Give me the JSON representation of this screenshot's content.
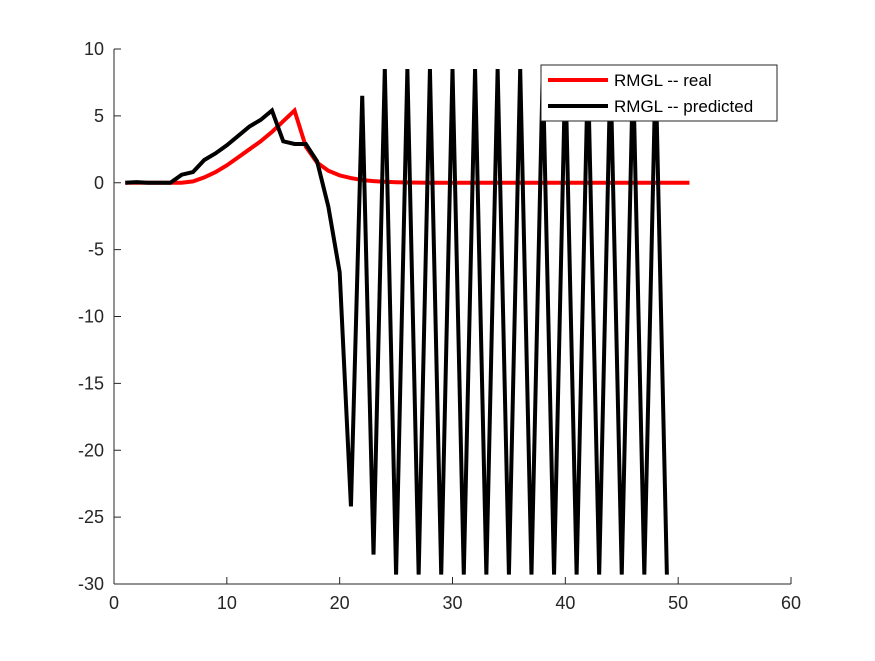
{
  "chart_data": {
    "type": "line",
    "title": "",
    "xlabel": "",
    "ylabel": "",
    "xlim": [
      0,
      60
    ],
    "ylim": [
      -30,
      10
    ],
    "xticks": [
      0,
      10,
      20,
      30,
      40,
      50,
      60
    ],
    "yticks": [
      -30,
      -25,
      -20,
      -15,
      -10,
      -5,
      0,
      5,
      10
    ],
    "xtick_labels": [
      "0",
      "10",
      "20",
      "30",
      "40",
      "50",
      "60"
    ],
    "ytick_labels": [
      "-30",
      "-25",
      "-20",
      "-15",
      "-10",
      "-5",
      "0",
      "5",
      "10"
    ],
    "grid": false,
    "legend": {
      "placement": "top-right",
      "entries": [
        "RMGL -- real",
        "RMGL -- predicted"
      ]
    },
    "series": [
      {
        "name": "RMGL -- real",
        "color": "#ff0000",
        "x": [
          1,
          2,
          3,
          4,
          5,
          6,
          7,
          8,
          9,
          10,
          11,
          12,
          13,
          14,
          15,
          16,
          17,
          18,
          19,
          20,
          21,
          22,
          23,
          24,
          25,
          26,
          27,
          28,
          29,
          30,
          31,
          32,
          33,
          34,
          35,
          36,
          37,
          38,
          39,
          40,
          41,
          42,
          43,
          44,
          45,
          46,
          47,
          48,
          49,
          50,
          51
        ],
        "y": [
          0,
          0,
          0,
          0,
          0,
          0,
          0.1,
          0.4,
          0.8,
          1.3,
          1.9,
          2.5,
          3.1,
          3.8,
          4.6,
          5.4,
          2.7,
          1.5,
          0.9,
          0.55,
          0.35,
          0.2,
          0.12,
          0.07,
          0.04,
          0.02,
          0.01,
          0,
          0,
          0,
          0,
          0,
          0,
          0,
          0,
          0,
          0,
          0,
          0,
          0,
          0,
          0,
          0,
          0,
          0,
          0,
          0,
          0,
          0,
          0,
          0
        ]
      },
      {
        "name": "RMGL -- predicted",
        "color": "#000000",
        "x": [
          1,
          2,
          3,
          4,
          5,
          6,
          7,
          8,
          9,
          10,
          11,
          12,
          13,
          14,
          15,
          16,
          17,
          18,
          19,
          20,
          21,
          22,
          23,
          24,
          25,
          26,
          27,
          28,
          29,
          30,
          31,
          32,
          33,
          34,
          35,
          36,
          37,
          38,
          39,
          40,
          41,
          42,
          43,
          44,
          45,
          46,
          47,
          48,
          49
        ],
        "y": [
          0,
          0.05,
          0,
          0,
          0,
          0.6,
          0.8,
          1.7,
          2.2,
          2.8,
          3.5,
          4.2,
          4.7,
          5.4,
          3.1,
          2.9,
          2.9,
          1.6,
          -1.8,
          -6.7,
          -24.2,
          6.5,
          -27.8,
          8.5,
          -29.3,
          8.5,
          -29.3,
          8.5,
          -29.3,
          8.5,
          -29.3,
          8.5,
          -29.3,
          8.5,
          -29.3,
          8.5,
          -29.3,
          8.5,
          -29.3,
          8.5,
          -29.3,
          8.5,
          -29.3,
          8.5,
          -29.3,
          8.5,
          -29.3,
          8.5,
          -29.3
        ]
      }
    ]
  }
}
